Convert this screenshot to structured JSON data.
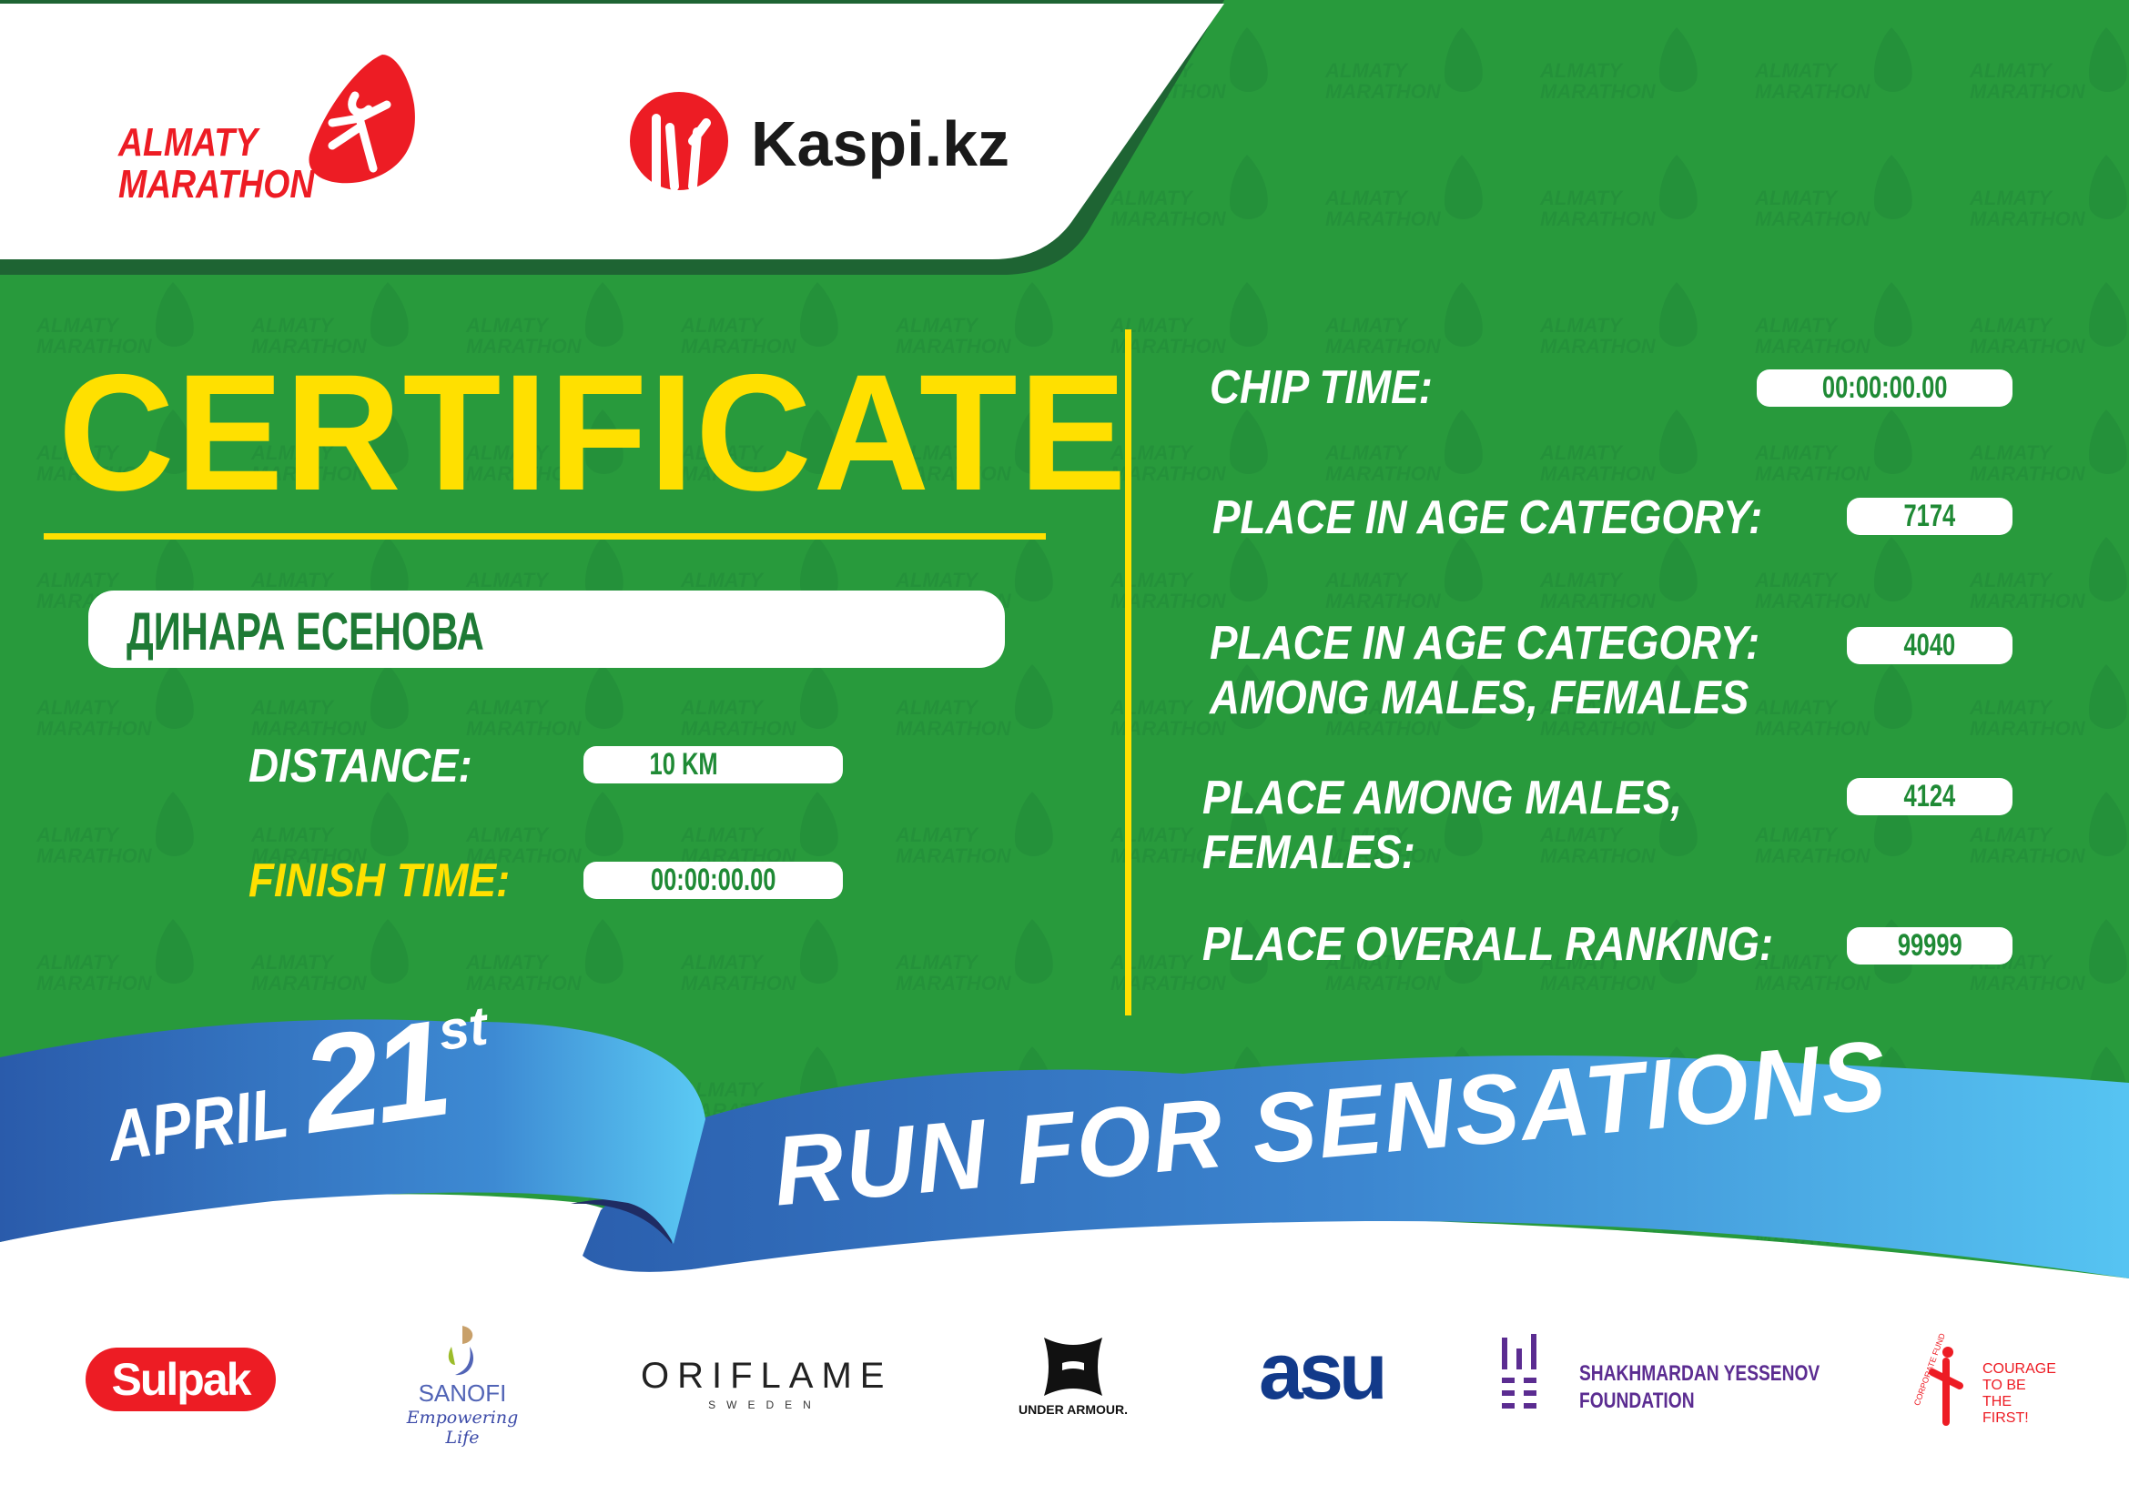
{
  "header": {
    "event_logo_text": [
      "ALMATY",
      "MARATHON"
    ],
    "sponsor_logo_text": "Kaspi.kz"
  },
  "certificate": {
    "title": "CERTIFICATE",
    "runner_name": "ДИНАРА ЕСЕНОВА",
    "distance_label": "DISTANCE:",
    "distance_value": "10 KM",
    "finish_time_label": "FINISH TIME:",
    "finish_time_value": "00:00:00.00"
  },
  "results": {
    "chip_time_label": "CHIP TIME:",
    "chip_time_value": "00:00:00.00",
    "age_category_label": "PLACE IN AGE CATEGORY:",
    "age_category_value": "7174",
    "age_category_gender_label": [
      "PLACE IN AGE CATEGORY:",
      "AMONG MALES, FEMALES"
    ],
    "age_category_gender_value": "4040",
    "gender_label": [
      "PLACE AMONG MALES,",
      "FEMALES:"
    ],
    "gender_value": "4124",
    "overall_label": "PLACE OVERALL RANKING:",
    "overall_value": "99999"
  },
  "ribbon": {
    "month": "APRIL",
    "day": "21",
    "day_suffix": "st",
    "slogan": "RUN FOR SENSATIONS"
  },
  "sponsors": {
    "sulpak": "Sulpak",
    "sanofi": "SANOFI",
    "sanofi_tagline": "Empowering Life",
    "oriflame": "ORIFLAME",
    "oriflame_sub": "SWEDEN",
    "under_armour": "UNDER ARMOUR.",
    "asu": "asu",
    "yessenov": [
      "SHAKHMARDAN YESSENOV",
      "FOUNDATION"
    ],
    "courage_arc": "CORPORATE FUND",
    "courage": [
      "COURAGE",
      "TO BE",
      "THE FIRST!"
    ]
  },
  "colors": {
    "green": "#289a3c",
    "dark_green": "#1e6433",
    "yellow": "#ffe000",
    "red": "#ed1c24",
    "ribbon_dark": "#2b5fae",
    "ribbon_light": "#54c2f0"
  }
}
